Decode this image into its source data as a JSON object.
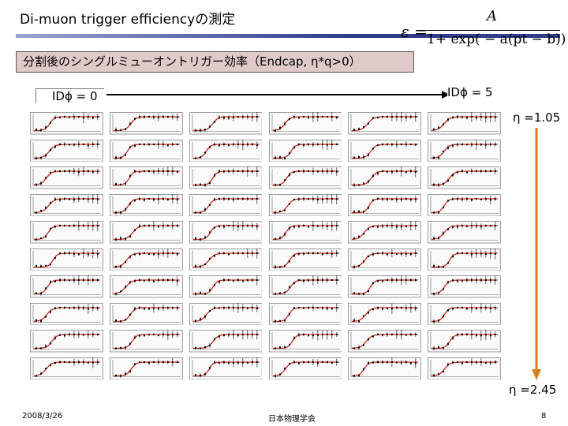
{
  "slide": {
    "title": "Di-muon trigger efficiencyの測定",
    "subtitle": "分割後のシングルミューオントリガー効率（Endcap, η*q>0）",
    "formula": {
      "lhs": "ε =",
      "numerator": "A",
      "denominator": "1+ exp( − a(pt − b))"
    },
    "id_phi_left": "IDϕ = 0",
    "id_phi_right": "IDϕ = 5",
    "eta_top": "η =1.05",
    "eta_bottom": "η =2.45",
    "footer": {
      "date": "2008/3/26",
      "organization": "日本物理学会",
      "page": "8"
    }
  },
  "plot_grid": {
    "rows": 10,
    "cols": 6,
    "curve_color": "#cc2a1e",
    "marker_color": "#000000"
  },
  "colors": {
    "title_bar": "#2e3c8c",
    "subtitle_bg": "#e0c9c9",
    "arrow_orange": "#d8801e"
  }
}
